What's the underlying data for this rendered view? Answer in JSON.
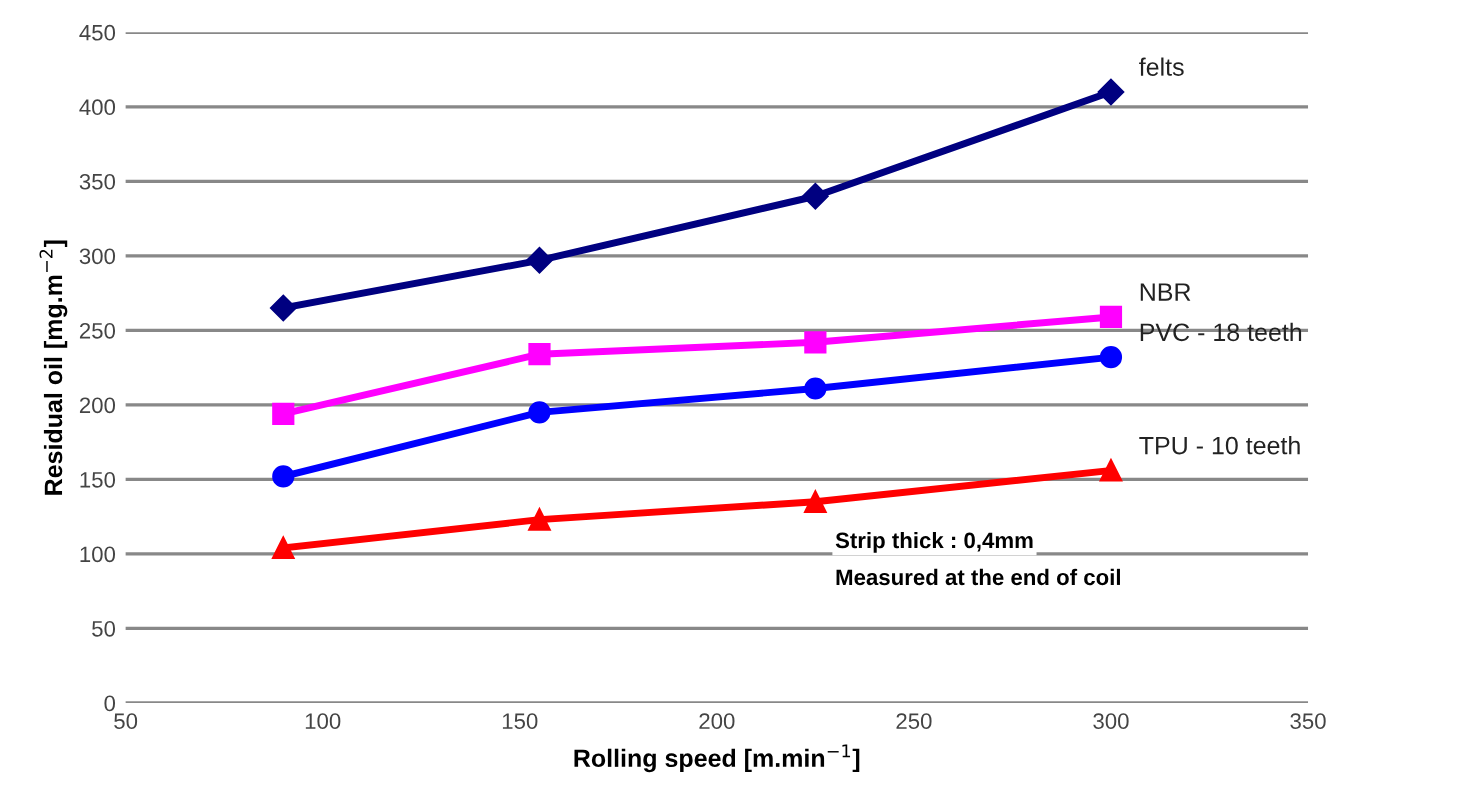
{
  "chart_data": {
    "type": "line",
    "xlabel": "Rolling speed [m.min$^{−1}$]",
    "ylabel": "Residual oil [mg.m$^{−2}$]",
    "x": [
      90,
      155,
      225,
      300
    ],
    "series": [
      {
        "name": "felts",
        "color": "#000080",
        "marker": "diamond",
        "values": [
          265,
          297,
          340,
          410
        ]
      },
      {
        "name": "NBR",
        "color": "#ff00ff",
        "marker": "square",
        "values": [
          194,
          234,
          242,
          259
        ]
      },
      {
        "name": "PVC - 18 teeth",
        "color": "#0000ff",
        "marker": "circle",
        "values": [
          152,
          195,
          211,
          232
        ]
      },
      {
        "name": "TPU - 10 teeth",
        "color": "#ff0000",
        "marker": "triangle",
        "values": [
          104,
          123,
          135,
          156
        ]
      }
    ],
    "xlim": [
      50,
      350
    ],
    "xticks": [
      50,
      100,
      150,
      200,
      250,
      300,
      350
    ],
    "ylim": [
      0,
      450
    ],
    "yticks": [
      0,
      50,
      100,
      150,
      200,
      250,
      300,
      350,
      400,
      450
    ],
    "grid": "y",
    "legend": false,
    "line_style": "solid",
    "annotations": [
      "Strip thick : 0,4mm",
      "Measured at the end of coil"
    ]
  }
}
